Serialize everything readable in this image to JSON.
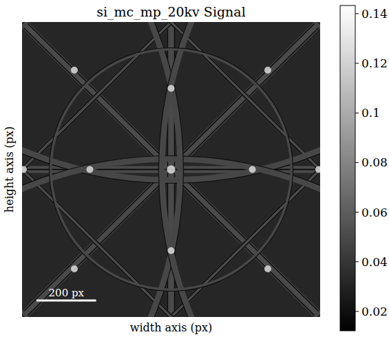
{
  "chart_data": {
    "type": "image",
    "title": "si_mc_mp_20kv Signal",
    "x_label": "width axis (px)",
    "y_label": "height axis (px)",
    "xlim": [
      0,
      1000
    ],
    "ylim": [
      0,
      1000
    ],
    "tick_labels": false,
    "scalebar_length": 200,
    "scalebar_label": "200 px",
    "colorbar_range": [
      0.0122,
      0.1433
    ],
    "colorbar_ticks": [
      0.02,
      0.04,
      0.06,
      0.08,
      0.1,
      0.12,
      0.14
    ],
    "color": "gray"
  }
}
